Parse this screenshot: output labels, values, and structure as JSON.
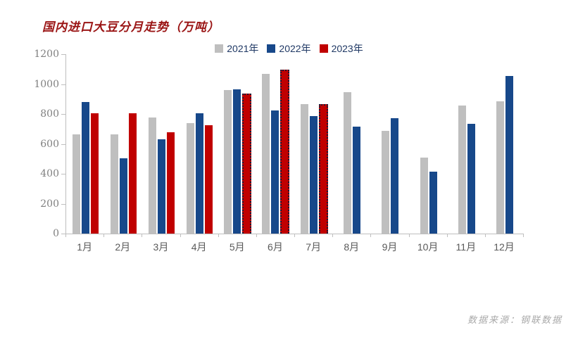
{
  "title": "国内进口大豆分月走势（万吨）",
  "source": "数据来源：钢联数据",
  "colors": {
    "title_text": "#9a1414",
    "legend_text": "#1f3864",
    "axis_line": "#bfbfbf",
    "y_label_text": "#7f7f7f",
    "x_label_text": "#595959",
    "dotted_outline": "#191936",
    "source_text": "#a9a9a9"
  },
  "chart_data": {
    "type": "bar",
    "title": "国内进口大豆分月走势（万吨）",
    "categories": [
      "1月",
      "2月",
      "3月",
      "4月",
      "5月",
      "6月",
      "7月",
      "8月",
      "9月",
      "10月",
      "11月",
      "12月"
    ],
    "series": [
      {
        "name": "2021年",
        "color": "#bfbfbf",
        "values": [
          665,
          665,
          775,
          740,
          960,
          1070,
          865,
          945,
          685,
          510,
          855,
          885
        ]
      },
      {
        "name": "2022年",
        "color": "#17488a",
        "values": [
          880,
          505,
          630,
          805,
          965,
          825,
          785,
          715,
          770,
          415,
          735,
          1055
        ]
      },
      {
        "name": "2023年",
        "color": "#c00000",
        "values": [
          805,
          805,
          680,
          725,
          925,
          1085,
          855,
          null,
          null,
          null,
          null,
          null
        ],
        "dotted_value_indices": [
          4,
          5,
          6
        ]
      }
    ],
    "ylim": [
      0,
      1200
    ],
    "yticks": [
      0,
      200,
      400,
      600,
      800,
      1000,
      1200
    ],
    "legend_position": "top",
    "grid": false,
    "ylabel": "",
    "xlabel": ""
  }
}
